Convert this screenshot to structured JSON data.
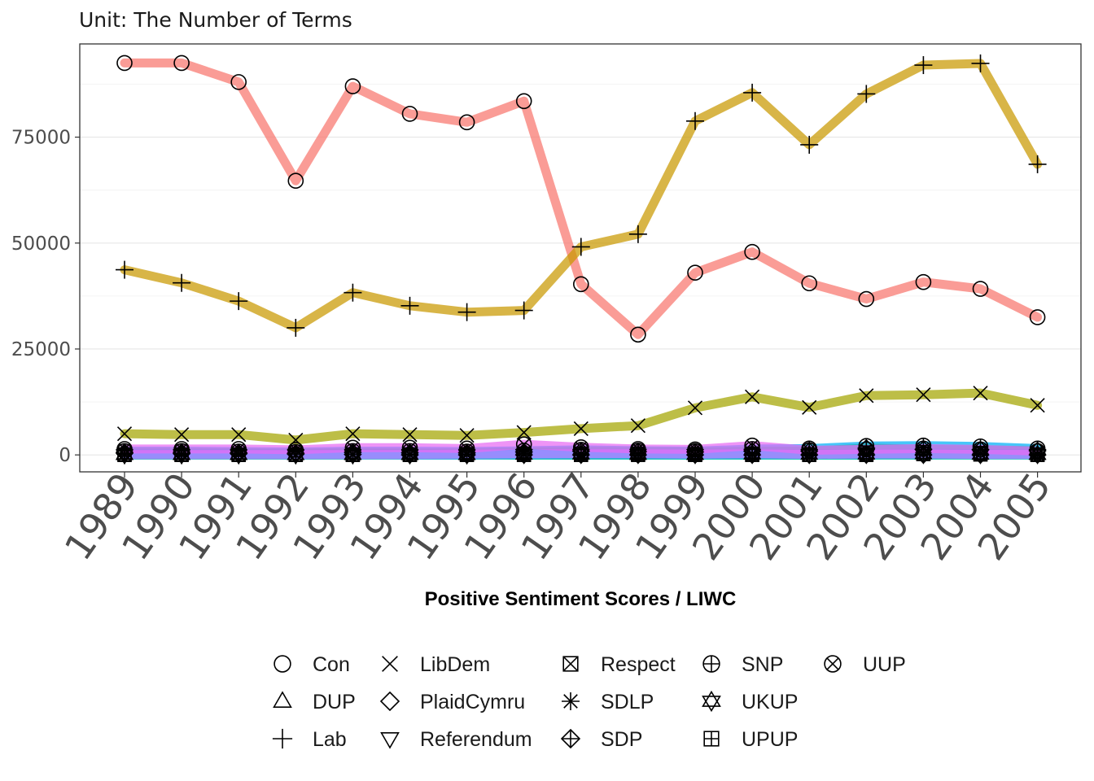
{
  "chart_data": {
    "type": "line",
    "subtitle": "Unit: The Number of Terms",
    "xlabel": "Positive Sentiment Scores / LIWC",
    "ylabel": "",
    "categories": [
      "1989",
      "1990",
      "1991",
      "1992",
      "1993",
      "1994",
      "1995",
      "1996",
      "1997",
      "1998",
      "1999",
      "2000",
      "2001",
      "2002",
      "2003",
      "2004",
      "2005"
    ],
    "ylim": [
      -4000,
      97000
    ],
    "yticks": [
      0,
      25000,
      50000,
      75000
    ],
    "ytick_labels": [
      "0",
      "25000",
      "50000",
      "75000"
    ],
    "grid": true,
    "legend_position": "bottom",
    "series": [
      {
        "name": "Con",
        "color": "#F8766D",
        "shape": "circle",
        "values": [
          92500,
          92500,
          88000,
          64700,
          87000,
          80500,
          78500,
          83500,
          40300,
          28400,
          43000,
          47900,
          40500,
          36800,
          40800,
          39200,
          32500
        ]
      },
      {
        "name": "DUP",
        "color": "#E58700",
        "shape": "triangle-up",
        "values": [
          300,
          300,
          300,
          200,
          300,
          300,
          250,
          300,
          300,
          200,
          200,
          300,
          300,
          300,
          400,
          300,
          200
        ]
      },
      {
        "name": "Lab",
        "color": "#C99800",
        "shape": "plus",
        "values": [
          43700,
          40600,
          36300,
          30000,
          38300,
          35200,
          33700,
          34100,
          49100,
          52100,
          78800,
          85500,
          73200,
          85200,
          92000,
          92400,
          68600
        ]
      },
      {
        "name": "LibDem",
        "color": "#A3A500",
        "shape": "cross",
        "values": [
          5000,
          4800,
          4800,
          3500,
          5000,
          4800,
          4600,
          5300,
          6200,
          6900,
          11100,
          13700,
          11200,
          14000,
          14200,
          14600,
          11700
        ]
      },
      {
        "name": "PlaidCymru",
        "color": "#6BB100",
        "shape": "diamond",
        "values": [
          600,
          600,
          500,
          400,
          600,
          500,
          500,
          700,
          900,
          800,
          700,
          900,
          900,
          1600,
          1300,
          1200,
          1000
        ]
      },
      {
        "name": "Referendum",
        "color": "#00BA38",
        "shape": "triangle-down",
        "values": [
          0,
          0,
          0,
          0,
          0,
          0,
          0,
          0,
          0,
          0,
          0,
          0,
          0,
          0,
          0,
          0,
          0
        ]
      },
      {
        "name": "Respect",
        "color": "#00BF7D",
        "shape": "square-cross",
        "values": [
          0,
          0,
          0,
          0,
          0,
          0,
          0,
          0,
          0,
          0,
          0,
          0,
          0,
          0,
          300,
          300,
          0
        ]
      },
      {
        "name": "SDLP",
        "color": "#00C0AF",
        "shape": "asterisk",
        "values": [
          200,
          200,
          200,
          100,
          200,
          200,
          200,
          300,
          300,
          300,
          200,
          300,
          200,
          300,
          500,
          300,
          300
        ]
      },
      {
        "name": "SDP",
        "color": "#00BCD8",
        "shape": "diamond-plus",
        "values": [
          400,
          300,
          300,
          200,
          100,
          0,
          0,
          0,
          0,
          0,
          0,
          0,
          0,
          0,
          0,
          0,
          0
        ]
      },
      {
        "name": "SNP",
        "color": "#00B0F6",
        "shape": "circle-plus",
        "values": [
          900,
          900,
          800,
          700,
          900,
          900,
          800,
          1000,
          1200,
          1000,
          900,
          1400,
          1500,
          2100,
          2200,
          2000,
          1500
        ]
      },
      {
        "name": "UKUP",
        "color": "#619CFF",
        "shape": "star-of-david",
        "values": [
          0,
          0,
          0,
          0,
          0,
          0,
          0,
          100,
          200,
          200,
          100,
          200,
          100,
          200,
          200,
          100,
          100
        ]
      },
      {
        "name": "UPUP",
        "color": "#B983FF",
        "shape": "square-plus",
        "values": [
          100,
          100,
          100,
          100,
          100,
          100,
          200,
          300,
          300,
          300,
          200,
          300,
          100,
          200,
          200,
          100,
          100
        ]
      },
      {
        "name": "UUP",
        "color": "#E76BF3",
        "shape": "circle-cross",
        "values": [
          1400,
          1400,
          1400,
          1200,
          1700,
          1700,
          1500,
          2500,
          1800,
          1400,
          1300,
          2200,
          1100,
          1300,
          1500,
          1300,
          900
        ]
      }
    ]
  }
}
